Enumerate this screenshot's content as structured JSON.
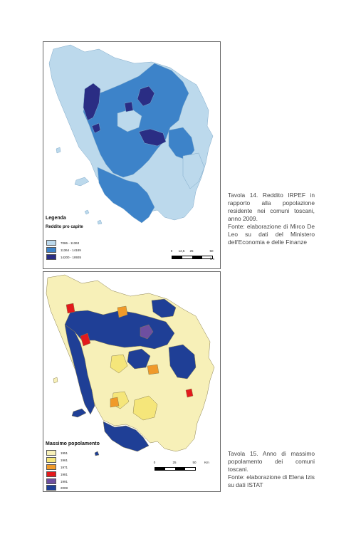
{
  "map1": {
    "legend_title": "Legenda",
    "legend_subtitle": "Reddito pro capite",
    "legend": [
      {
        "label": "7086 - 11363",
        "color": "#bcd9ec"
      },
      {
        "label": "11364 - 14189",
        "color": "#3d83c9"
      },
      {
        "label": "14200 - 18935",
        "color": "#2a2d84"
      }
    ],
    "scale": {
      "ticks": [
        "0",
        "12,5",
        "25",
        "50"
      ],
      "unit": "km"
    }
  },
  "caption1": {
    "title": "Tavola 14. Reddito IRPEF in rapporto alla popolazione residente nei comuni toscani, anno 2009.",
    "source": "Fonte: elaborazione di Mirco De Leo su dati del Ministero dell'Economia e delle Finanze"
  },
  "map2": {
    "legend_title": "Massimo popolamento",
    "legend": [
      {
        "label": "1951",
        "color": "#f7f0b8"
      },
      {
        "label": "1961",
        "color": "#f5e67a"
      },
      {
        "label": "1971",
        "color": "#f09a2a"
      },
      {
        "label": "1981",
        "color": "#e31a1c"
      },
      {
        "label": "1991",
        "color": "#6e4fa0"
      },
      {
        "label": "2008",
        "color": "#1f3f96"
      }
    ],
    "scale": {
      "ticks": [
        "0",
        "25",
        "50"
      ],
      "unit": "Km"
    }
  },
  "caption2": {
    "title": "Tavola 15. Anno di massimo popolamento dei comuni toscani.",
    "source": "Fonte: elaborazione di Elena Izis su dati ISTAT"
  }
}
